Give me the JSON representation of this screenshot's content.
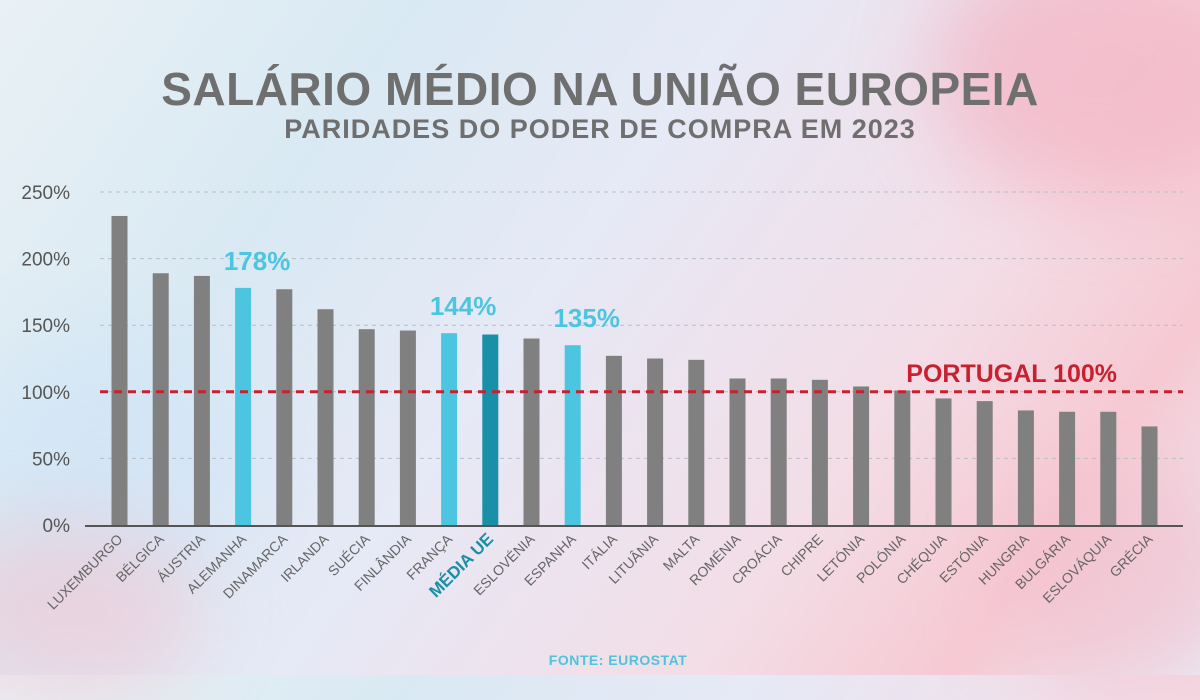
{
  "title": "SALÁRIO MÉDIO NA UNIÃO EUROPEIA",
  "subtitle": "PARIDADES DO PODER DE COMPRA EM 2023",
  "source": "FONTE: EUROSTAT",
  "colors": {
    "bar_default": "#808080",
    "bar_highlight": "#4cc6e0",
    "bar_average": "#1a8fa8",
    "reference_line": "#c8202f",
    "axis_text": "#555555",
    "label_highlight": "#4cc6e0"
  },
  "chart_data": {
    "type": "bar",
    "ylim": [
      0,
      250
    ],
    "yticks": [
      {
        "value": 0,
        "label": "0%"
      },
      {
        "value": 50,
        "label": "50%"
      },
      {
        "value": 100,
        "label": "100%"
      },
      {
        "value": 150,
        "label": "150%"
      },
      {
        "value": 200,
        "label": "200%"
      },
      {
        "value": 250,
        "label": "250%"
      }
    ],
    "grid": true,
    "categories": [
      "LUXEMBURGO",
      "BÉLGICA",
      "ÁUSTRIA",
      "ALEMANHA",
      "DINAMARCA",
      "IRLANDA",
      "SUÉCIA",
      "FINLÂNDIA",
      "FRANÇA",
      "MÉDIA UE",
      "ESLOVÉNIA",
      "ESPANHA",
      "ITÁLIA",
      "LITUÂNIA",
      "MALTA",
      "ROMÉNIA",
      "CROÁCIA",
      "CHIPRE",
      "LETÓNIA",
      "POLÓNIA",
      "CHÉQUIA",
      "ESTÓNIA",
      "HUNGRIA",
      "BULGÁRIA",
      "ESLOVÁQUIA",
      "GRÉCIA"
    ],
    "values": [
      232,
      189,
      187,
      178,
      177,
      162,
      147,
      146,
      144,
      143,
      140,
      135,
      127,
      125,
      124,
      110,
      110,
      109,
      104,
      101,
      95,
      93,
      86,
      85,
      85,
      74
    ],
    "highlight": [
      "ALEMANHA",
      "FRANÇA",
      "ESPANHA"
    ],
    "average_category": "MÉDIA UE",
    "annotations": [
      {
        "category": "ALEMANHA",
        "text": "178%"
      },
      {
        "category": "FRANÇA",
        "text": "144%"
      },
      {
        "category": "ESPANHA",
        "text": "135%"
      }
    ],
    "reference_line": {
      "value": 100,
      "label": "PORTUGAL 100%"
    }
  }
}
